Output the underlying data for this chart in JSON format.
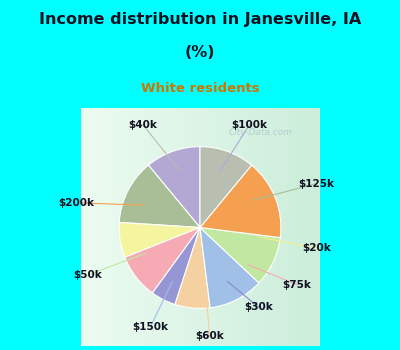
{
  "title_line1": "Income distribution in Janesville, IA",
  "title_line2": "(%)",
  "subtitle": "White residents",
  "title_color": "#111122",
  "subtitle_color": "#cc7700",
  "bg_cyan": "#00ffff",
  "labels": [
    "$100k",
    "$125k",
    "$20k",
    "$75k",
    "$30k",
    "$60k",
    "$150k",
    "$50k",
    "$200k",
    "$40k"
  ],
  "values": [
    11,
    13,
    7,
    9,
    5,
    7,
    11,
    10,
    16,
    11
  ],
  "colors": [
    "#b3a8d4",
    "#a8be96",
    "#f5f5a0",
    "#f5aab4",
    "#9696d4",
    "#f5d0a0",
    "#a0c0e8",
    "#c0e8a0",
    "#f5a050",
    "#b8beb0"
  ],
  "figsize": [
    4.0,
    3.5
  ],
  "dpi": 100,
  "label_line_colors": [
    "#b3a8d4",
    "#a8be96",
    "#f5f090",
    "#f5aab4",
    "#8888cc",
    "#f5d0a0",
    "#a0c0e8",
    "#c0e8a0",
    "#f5a050",
    "#b8beb0"
  ]
}
